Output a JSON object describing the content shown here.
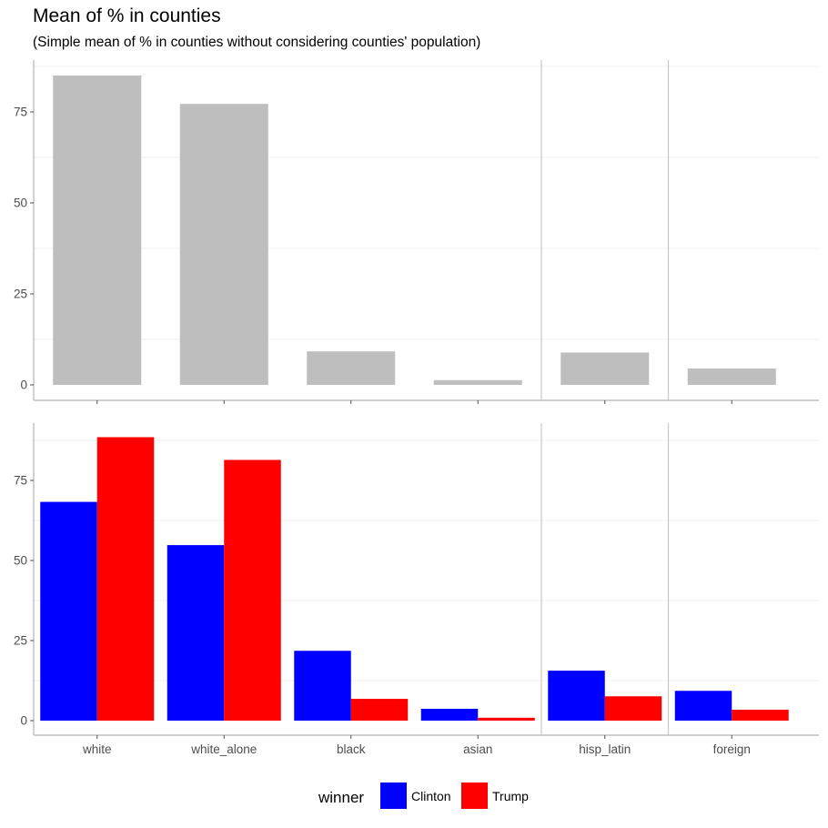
{
  "chart_data": {
    "type": "bar",
    "title": "Mean of % in counties",
    "subtitle": "(Simple mean of % in counties without considering counties' population)",
    "xlabel": "",
    "ylabel": "",
    "categories": [
      "white",
      "white_alone",
      "black",
      "asian",
      "hisp_latin",
      "foreign"
    ],
    "panels": [
      {
        "name": "",
        "ylim": [
          0,
          88
        ],
        "yticks": [
          0,
          25,
          50,
          75
        ],
        "series": [
          {
            "name": "",
            "color": "#bebebe",
            "values": [
              85,
              77.2,
              9.2,
              1.3,
              8.9,
              4.5
            ]
          }
        ]
      },
      {
        "name": "",
        "ylim": [
          0,
          91
        ],
        "yticks": [
          0,
          25,
          50,
          75
        ],
        "series": [
          {
            "name": "Clinton",
            "color": "#0000ff",
            "values": [
              68.3,
              54.8,
              21.8,
              3.7,
              15.6,
              9.3
            ]
          },
          {
            "name": "Trump",
            "color": "#ff0000",
            "values": [
              88.5,
              81.4,
              6.8,
              0.9,
              7.6,
              3.4
            ]
          }
        ]
      }
    ],
    "legend": {
      "title": "winner",
      "position": "bottom",
      "items": [
        {
          "label": "Clinton",
          "color": "#0000ff"
        },
        {
          "label": "Trump",
          "color": "#ff0000"
        }
      ]
    },
    "grid": true
  }
}
